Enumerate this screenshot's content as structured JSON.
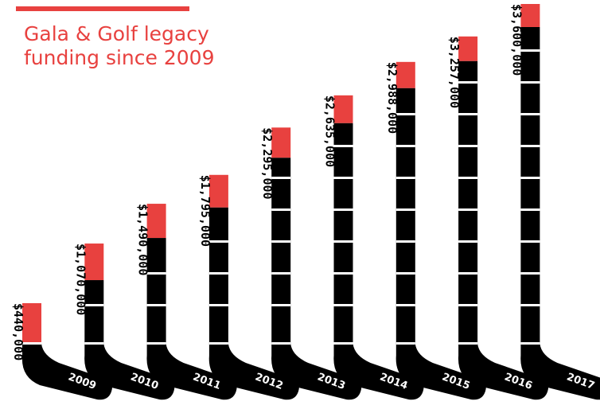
{
  "title": {
    "line1": "Gala & Golf legacy",
    "line2": "funding since 2009"
  },
  "colors": {
    "accent": "#e8413f",
    "stick": "#000000",
    "background": "#ffffff"
  },
  "chart_data": {
    "type": "bar",
    "title": "Gala & Golf legacy funding since 2009",
    "categories": [
      "2009",
      "2010",
      "2011",
      "2012",
      "2013",
      "2014",
      "2015",
      "2016",
      "2017"
    ],
    "values": [
      440000,
      1070000,
      1490000,
      1795000,
      2295000,
      2635000,
      2988000,
      3257000,
      3600000
    ],
    "value_labels": [
      "$440,000",
      "$1,070,000",
      "$1,490,000",
      "$1,795,000",
      "$2,295,000",
      "$2,635,000",
      "$2,988,000",
      "$3,257,000",
      "$3,600,000"
    ],
    "ylim": [
      0,
      3600000
    ],
    "grid": false,
    "legend": "none"
  }
}
